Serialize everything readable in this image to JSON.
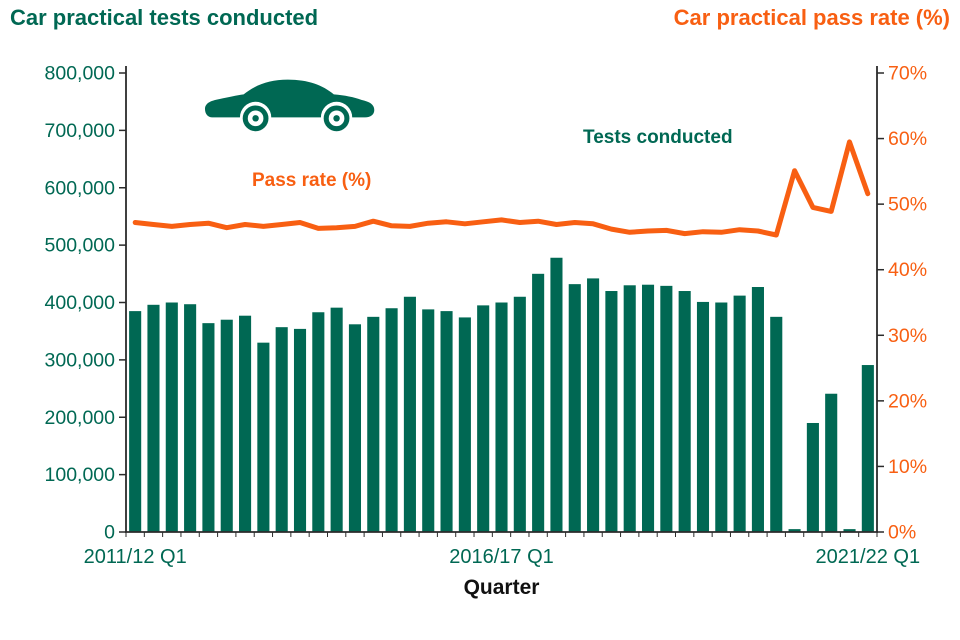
{
  "header": {
    "left_title": "Car practical tests conducted",
    "right_title": "Car practical pass rate (%)"
  },
  "icons": {
    "car": "car-icon"
  },
  "chart_data": {
    "type": "bar",
    "subtype": "dual-axis bar + line",
    "x_axis_label": "Quarter",
    "left_axis": {
      "title": "Car practical tests conducted",
      "min": 0,
      "max": 800000,
      "tick_labels": [
        "0",
        "100,000",
        "200,000",
        "300,000",
        "400,000",
        "500,000",
        "600,000",
        "700,000",
        "800,000"
      ]
    },
    "right_axis": {
      "title": "Car practical pass rate (%)",
      "min": 0,
      "max": 70,
      "tick_labels": [
        "0%",
        "10%",
        "20%",
        "30%",
        "40%",
        "50%",
        "60%",
        "70%"
      ]
    },
    "x_ticks": [
      {
        "index": 0,
        "label": "2011/12 Q1"
      },
      {
        "index": 20,
        "label": "2016/17 Q1"
      },
      {
        "index": 40,
        "label": "2021/22 Q1"
      }
    ],
    "categories": [
      "2011/12 Q1",
      "2011/12 Q2",
      "2011/12 Q3",
      "2011/12 Q4",
      "2012/13 Q1",
      "2012/13 Q2",
      "2012/13 Q3",
      "2012/13 Q4",
      "2013/14 Q1",
      "2013/14 Q2",
      "2013/14 Q3",
      "2013/14 Q4",
      "2014/15 Q1",
      "2014/15 Q2",
      "2014/15 Q3",
      "2014/15 Q4",
      "2015/16 Q1",
      "2015/16 Q2",
      "2015/16 Q3",
      "2015/16 Q4",
      "2016/17 Q1",
      "2016/17 Q2",
      "2016/17 Q3",
      "2016/17 Q4",
      "2017/18 Q1",
      "2017/18 Q2",
      "2017/18 Q3",
      "2017/18 Q4",
      "2018/19 Q1",
      "2018/19 Q2",
      "2018/19 Q3",
      "2018/19 Q4",
      "2019/20 Q1",
      "2019/20 Q2",
      "2019/20 Q3",
      "2019/20 Q4",
      "2020/21 Q1",
      "2020/21 Q2",
      "2020/21 Q3",
      "2020/21 Q4",
      "2021/22 Q1"
    ],
    "series": [
      {
        "name": "Tests conducted",
        "kind": "bar",
        "axis": "left",
        "color": "#006853",
        "values": [
          385000,
          396000,
          400000,
          397000,
          364000,
          370000,
          377000,
          330000,
          357000,
          354000,
          383000,
          391000,
          362000,
          375000,
          390000,
          410000,
          388000,
          385000,
          374000,
          395000,
          400000,
          410000,
          450000,
          478000,
          432000,
          442000,
          420000,
          430000,
          431000,
          429000,
          420000,
          401000,
          400000,
          412000,
          427000,
          375000,
          5000,
          190000,
          241000,
          5000,
          291000
        ]
      },
      {
        "name": "Pass rate (%)",
        "kind": "line",
        "axis": "right",
        "color": "#f85f12",
        "values": [
          47.2,
          46.9,
          46.6,
          46.9,
          47.1,
          46.4,
          46.9,
          46.6,
          46.9,
          47.2,
          46.3,
          46.4,
          46.6,
          47.4,
          46.7,
          46.6,
          47.1,
          47.3,
          47.0,
          47.3,
          47.6,
          47.2,
          47.4,
          46.9,
          47.2,
          47.0,
          46.2,
          45.7,
          45.9,
          46.0,
          45.5,
          45.8,
          45.7,
          46.1,
          45.9,
          45.3,
          55.1,
          49.5,
          48.9,
          59.5,
          51.6
        ]
      }
    ],
    "annotations": {
      "pass_rate": "Pass rate (%)",
      "tests_conducted": "Tests conducted"
    },
    "colors": {
      "bars": "#006853",
      "line": "#f85f12",
      "left_text": "#006853",
      "right_text": "#f85f12",
      "x_tick_text": "#006853",
      "axis": "#2b2b2b",
      "background": "#ffffff"
    },
    "grid": false,
    "legend": "in-plot text annotations"
  }
}
